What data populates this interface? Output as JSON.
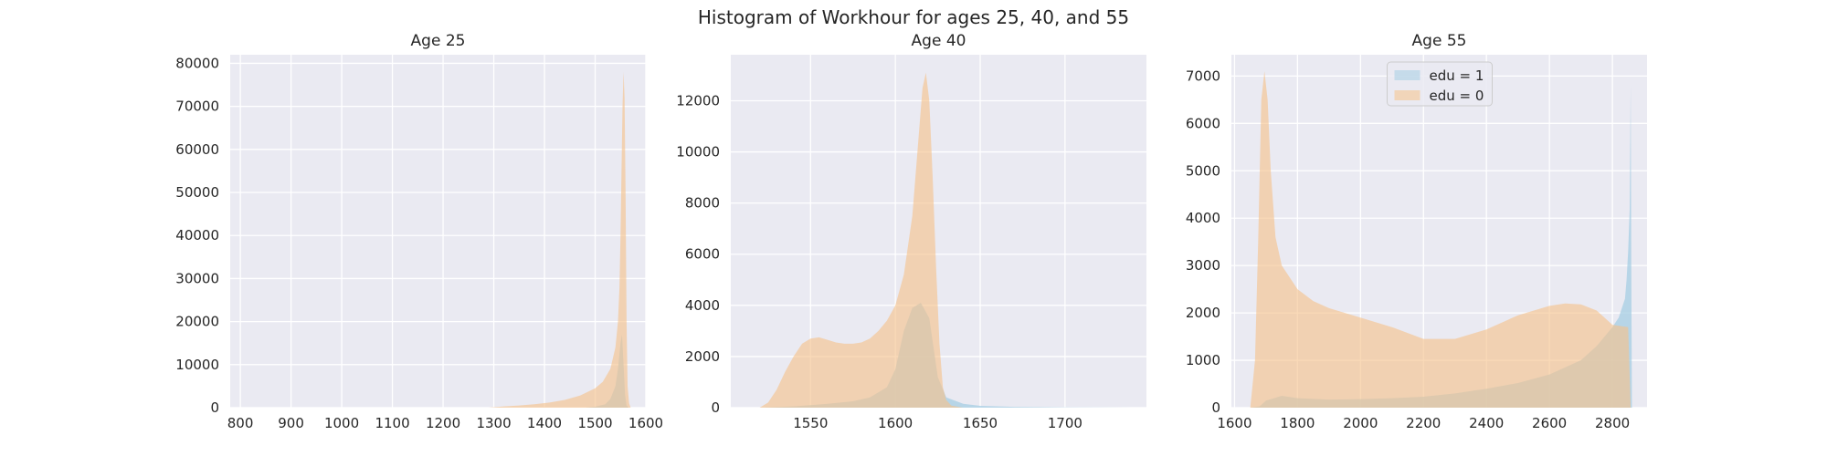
{
  "figure": {
    "suptitle": "Histogram of Workhour for ages 25, 40, and 55"
  },
  "colors": {
    "background": "#eaeaf2",
    "grid": "#ffffff",
    "edu1": "#a6cee3",
    "edu0": "#f5c28a"
  },
  "chart_data": [
    {
      "type": "area",
      "title": "Age 25",
      "xlabel": "",
      "ylabel": "",
      "xlim": [
        780,
        1600
      ],
      "ylim": [
        0,
        82000
      ],
      "xticks": [
        800,
        900,
        1000,
        1100,
        1200,
        1300,
        1400,
        1500,
        1600
      ],
      "yticks": [
        0,
        10000,
        20000,
        30000,
        40000,
        50000,
        60000,
        70000,
        80000
      ],
      "grid": true,
      "series": [
        {
          "name": "edu = 1",
          "color": "#a6cee3",
          "x": [
            1480,
            1500,
            1520,
            1530,
            1540,
            1545,
            1550,
            1553,
            1556,
            1559,
            1562,
            1566
          ],
          "y": [
            0,
            200,
            800,
            2000,
            5000,
            9000,
            15000,
            17000,
            10000,
            3000,
            500,
            0
          ]
        },
        {
          "name": "edu = 0",
          "color": "#f5c28a",
          "x": [
            1290,
            1320,
            1350,
            1380,
            1410,
            1440,
            1470,
            1500,
            1515,
            1530,
            1540,
            1545,
            1548,
            1550,
            1552,
            1554,
            1556,
            1558,
            1560,
            1562,
            1564,
            1567,
            1570
          ],
          "y": [
            0,
            300,
            500,
            800,
            1200,
            1800,
            2800,
            4500,
            6000,
            9000,
            14000,
            20000,
            28000,
            40000,
            55000,
            70000,
            78000,
            72000,
            50000,
            20000,
            5000,
            1000,
            0
          ]
        }
      ]
    },
    {
      "type": "area",
      "title": "Age 40",
      "xlabel": "",
      "ylabel": "",
      "xlim": [
        1503,
        1748
      ],
      "ylim": [
        0,
        13800
      ],
      "xticks": [
        1550,
        1600,
        1650,
        1700
      ],
      "yticks": [
        0,
        2000,
        4000,
        6000,
        8000,
        10000,
        12000
      ],
      "grid": true,
      "series": [
        {
          "name": "edu = 1",
          "color": "#a6cee3",
          "x": [
            1520,
            1540,
            1560,
            1575,
            1585,
            1595,
            1600,
            1605,
            1610,
            1615,
            1620,
            1625,
            1630,
            1640,
            1650,
            1670,
            1700,
            1740
          ],
          "y": [
            0,
            50,
            150,
            250,
            400,
            800,
            1500,
            3000,
            3900,
            4100,
            3500,
            1200,
            400,
            150,
            70,
            30,
            10,
            0
          ]
        },
        {
          "name": "edu = 0",
          "color": "#f5c28a",
          "x": [
            1520,
            1525,
            1530,
            1535,
            1540,
            1545,
            1550,
            1555,
            1560,
            1565,
            1570,
            1575,
            1580,
            1585,
            1590,
            1595,
            1600,
            1605,
            1610,
            1613,
            1616,
            1618,
            1620,
            1622,
            1624,
            1626,
            1628,
            1630,
            1633,
            1640
          ],
          "y": [
            0,
            200,
            700,
            1400,
            2000,
            2500,
            2700,
            2750,
            2650,
            2550,
            2500,
            2500,
            2550,
            2700,
            3000,
            3400,
            4000,
            5200,
            7500,
            10000,
            12500,
            13100,
            12000,
            9000,
            5500,
            2500,
            800,
            300,
            80,
            0
          ]
        }
      ]
    },
    {
      "type": "area",
      "title": "Age 55",
      "xlabel": "",
      "ylabel": "",
      "xlim": [
        1590,
        2910
      ],
      "ylim": [
        0,
        7450
      ],
      "xticks": [
        1600,
        1800,
        2000,
        2200,
        2400,
        2600,
        2800
      ],
      "yticks": [
        0,
        1000,
        2000,
        3000,
        4000,
        5000,
        6000,
        7000
      ],
      "grid": true,
      "legend": "upper center",
      "series": [
        {
          "name": "edu = 1",
          "color": "#a6cee3",
          "x": [
            1650,
            1680,
            1700,
            1750,
            1800,
            1900,
            2000,
            2100,
            2200,
            2300,
            2400,
            2500,
            2600,
            2700,
            2750,
            2800,
            2820,
            2830,
            2840,
            2845,
            2850,
            2855,
            2858,
            2860,
            2862
          ],
          "y": [
            0,
            30,
            150,
            250,
            200,
            170,
            180,
            200,
            230,
            300,
            400,
            520,
            700,
            1000,
            1300,
            1700,
            1900,
            2100,
            2300,
            2700,
            3300,
            4200,
            6800,
            3000,
            0
          ]
        },
        {
          "name": "edu = 0",
          "color": "#f5c28a",
          "x": [
            1650,
            1665,
            1675,
            1685,
            1695,
            1705,
            1715,
            1730,
            1750,
            1800,
            1850,
            1900,
            2000,
            2100,
            2200,
            2300,
            2400,
            2500,
            2600,
            2650,
            2700,
            2750,
            2800,
            2850,
            2858
          ],
          "y": [
            0,
            1000,
            3500,
            6500,
            7100,
            6500,
            5000,
            3600,
            3000,
            2500,
            2250,
            2100,
            1900,
            1700,
            1450,
            1450,
            1650,
            1950,
            2150,
            2200,
            2180,
            2050,
            1750,
            1700,
            0
          ]
        }
      ]
    }
  ]
}
